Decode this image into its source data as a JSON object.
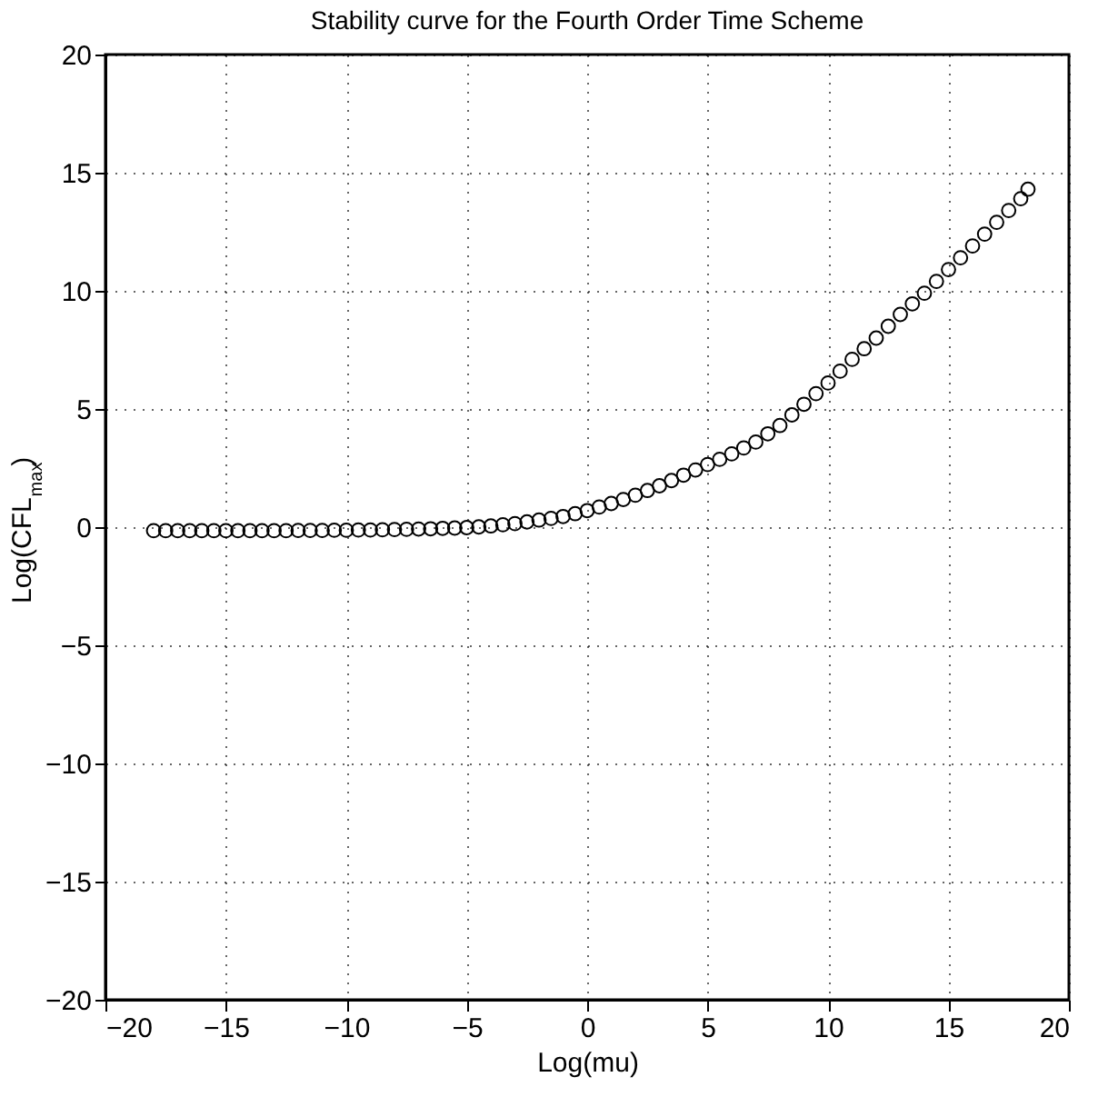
{
  "chart_data": {
    "type": "scatter",
    "title": "Stability curve for the Fourth Order Time Scheme",
    "xlabel": "Log(mu)",
    "ylabel": "Log(CFL$_{max}$)",
    "marker": "circle",
    "grid": true,
    "x": [
      -18,
      -17.5,
      -17,
      -16.5,
      -16,
      -15.5,
      -15,
      -14.5,
      -14,
      -13.5,
      -13,
      -12.5,
      -12,
      -11.5,
      -11,
      -10.5,
      -10,
      -9.5,
      -9,
      -8.5,
      -8,
      -7.5,
      -7,
      -6.5,
      -6,
      -5.5,
      -5,
      -4.5,
      -4,
      -3.5,
      -3,
      -2.5,
      -2,
      -1.5,
      -1,
      -0.5,
      0,
      0.5,
      1,
      1.5,
      2,
      2.5,
      3,
      3.5,
      4,
      4.5,
      5,
      5.5,
      6,
      6.5,
      7,
      7.5,
      8,
      8.5,
      9,
      9.5,
      10,
      10.5,
      11,
      11.5,
      12,
      12.5,
      13,
      13.5,
      14,
      14.5,
      15,
      15.5,
      16,
      16.5,
      17,
      17.5,
      18,
      18.3
    ],
    "series": [
      {
        "color": "#000000",
        "values": [
          -0.15,
          -0.15,
          -0.15,
          -0.15,
          -0.15,
          -0.15,
          -0.15,
          -0.15,
          -0.15,
          -0.15,
          -0.15,
          -0.15,
          -0.14,
          -0.14,
          -0.14,
          -0.13,
          -0.13,
          -0.12,
          -0.12,
          -0.11,
          -0.1,
          -0.09,
          -0.08,
          -0.07,
          -0.05,
          -0.04,
          -0.02,
          0.01,
          0.05,
          0.1,
          0.15,
          0.22,
          0.3,
          0.37,
          0.45,
          0.57,
          0.7,
          0.85,
          1.0,
          1.17,
          1.35,
          1.55,
          1.75,
          1.97,
          2.2,
          2.42,
          2.65,
          2.87,
          3.1,
          3.35,
          3.6,
          3.95,
          4.3,
          4.75,
          5.2,
          5.65,
          6.1,
          6.6,
          7.1,
          7.55,
          8.0,
          8.5,
          9.0,
          9.45,
          9.9,
          10.4,
          10.9,
          11.4,
          11.9,
          12.4,
          12.9,
          13.4,
          13.9,
          14.3
        ]
      }
    ],
    "xlim": [
      -20,
      20
    ],
    "xticks": [
      -20,
      -15,
      -10,
      -5,
      0,
      5,
      10,
      15,
      20
    ],
    "ylim": [
      -20,
      20
    ],
    "yticks": [
      -20,
      -15,
      -10,
      -5,
      0,
      5,
      10,
      15,
      20
    ]
  }
}
